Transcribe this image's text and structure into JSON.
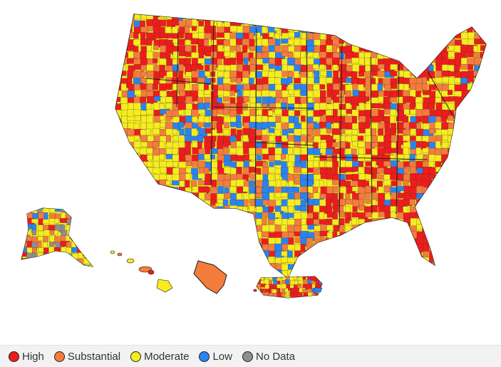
{
  "colors": {
    "high": "#ee1c1c",
    "substantial": "#f47c3c",
    "moderate": "#f6ec1f",
    "low": "#2a83f0",
    "no_data": "#8f8f8f",
    "border": "#1a1a1a"
  },
  "regions": [
    "contiguous-us",
    "alaska",
    "hawaii",
    "guam",
    "puerto-rico"
  ],
  "legend": [
    {
      "key": "high",
      "label": "High",
      "color": "#ee1c1c",
      "icon": "red-circle-icon"
    },
    {
      "key": "substantial",
      "label": "Substantial",
      "color": "#f47c3c",
      "icon": "orange-circle-icon"
    },
    {
      "key": "moderate",
      "label": "Moderate",
      "color": "#f6ec1f",
      "icon": "yellow-circle-icon"
    },
    {
      "key": "low",
      "label": "Low",
      "color": "#2a83f0",
      "icon": "blue-circle-icon"
    },
    {
      "key": "no_data",
      "label": "No Data",
      "color": "#8f8f8f",
      "icon": "gray-circle-icon"
    }
  ]
}
